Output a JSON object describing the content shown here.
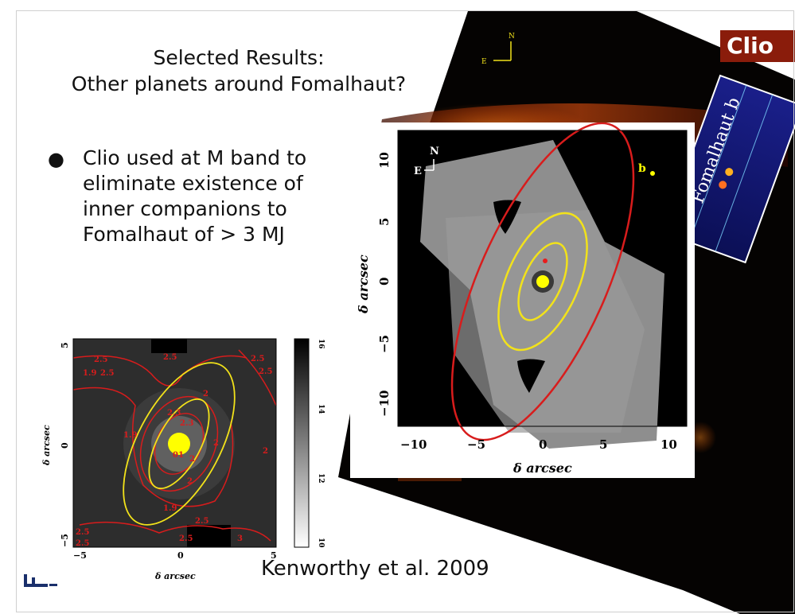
{
  "slide": {
    "title_line1": "Selected Results:",
    "title_line2": "Other planets around Fomalhaut?",
    "bullet_text": "Clio used at M band to eliminate existence of inner companions to Fomalhaut of > 3 MJ",
    "citation": "Kenworthy et al. 2009"
  },
  "background_image": {
    "badge": "Clio",
    "compass_n": "N",
    "compass_e": "E",
    "inset_label": "Fomalhaut b"
  },
  "inset_figure": {
    "compass_n": "N",
    "compass_e": "E",
    "planet_label": "b",
    "xlabel": "δ arcsec",
    "ylabel": "δ arcsec",
    "xticks": [
      "−10",
      "−5",
      "0",
      "5",
      "10"
    ],
    "yticks": [
      "10",
      "5",
      "0",
      "−5",
      "−10"
    ],
    "colors": {
      "ring": "#d81c1c",
      "ellipse": "#f2e21a",
      "star": "#ffff00"
    }
  },
  "small_figure": {
    "xlabel": "δ arcsec",
    "ylabel": "δ arcsec",
    "xticks": [
      "−5",
      "0",
      "5"
    ],
    "yticks": [
      "5",
      "0",
      "−5"
    ],
    "colorbar_ticks": [
      "16",
      "14",
      "12",
      "10"
    ],
    "contour_labels": [
      "2.5",
      "2.5",
      "2.5",
      "1.9",
      "2",
      "2.5",
      "2.3",
      "2.5",
      "1.9",
      "2.3",
      "2",
      "2",
      "01",
      "2",
      "1.9",
      "2",
      "2.5",
      "2.5",
      "2.5",
      "2.5",
      "3"
    ]
  }
}
